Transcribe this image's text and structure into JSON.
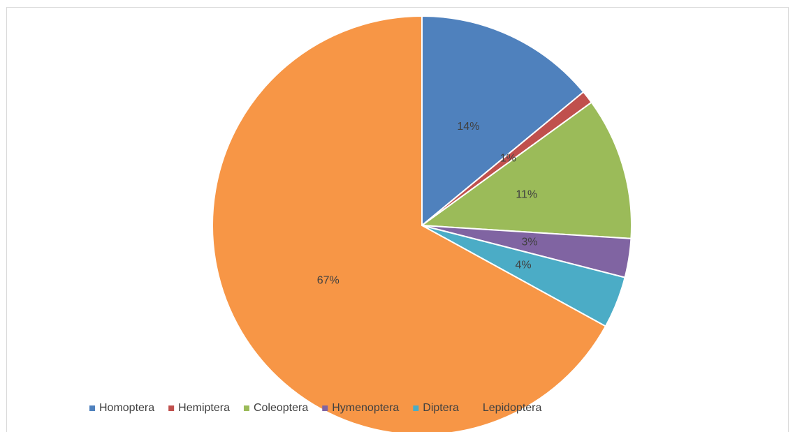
{
  "chart_data": {
    "type": "pie",
    "categories": [
      "Homoptera",
      "Hemiptera",
      "Coleoptera",
      "Hymenoptera",
      "Diptera",
      "Lepidoptera"
    ],
    "values": [
      14,
      1,
      11,
      3,
      4,
      67
    ],
    "value_labels": [
      "14%",
      "1%",
      "11%",
      "3%",
      "4%",
      "67%"
    ],
    "colors": [
      "#4f81bd",
      "#c0504d",
      "#9bbb59",
      "#8064a2",
      "#4bacc6",
      "#f79646"
    ],
    "legend": "bottom"
  }
}
